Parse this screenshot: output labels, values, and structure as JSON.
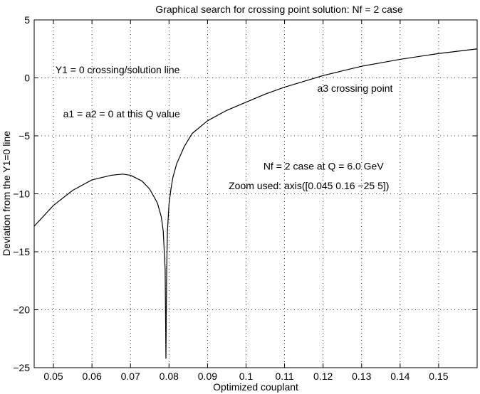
{
  "chart_data": {
    "type": "line",
    "title": "Graphical search for crossing point solution: Nf = 2 case",
    "xlabel": "Optimized couplant",
    "ylabel": "Deviation from the Y1=0 line",
    "xlim": [
      0.045,
      0.16
    ],
    "ylim": [
      -25,
      5
    ],
    "grid": true,
    "xticks": [
      0.05,
      0.06,
      0.07,
      0.08,
      0.09,
      0.1,
      0.11,
      0.12,
      0.13,
      0.14,
      0.15
    ],
    "xtick_labels": [
      "0.05",
      "0.06",
      "0.07",
      "0.08",
      "0.09",
      "0.1",
      "0.11",
      "0.12",
      "0.13",
      "0.14",
      "0.15"
    ],
    "yticks": [
      5,
      0,
      -5,
      -10,
      -15,
      -20,
      -25
    ],
    "ytick_labels": [
      "5",
      "0",
      "−5",
      "−10",
      "−15",
      "−20",
      "−25"
    ],
    "series": [
      {
        "color": "#000000",
        "x": [
          0.045,
          0.05,
          0.055,
          0.06,
          0.065,
          0.068,
          0.07,
          0.073,
          0.075,
          0.077,
          0.078,
          0.0785,
          0.079,
          0.0792,
          0.0794,
          0.0796,
          0.08,
          0.0805,
          0.081,
          0.082,
          0.084,
          0.086,
          0.09,
          0.095,
          0.1,
          0.105,
          0.11,
          0.115,
          0.12,
          0.125,
          0.13,
          0.135,
          0.14,
          0.145,
          0.15,
          0.155,
          0.16
        ],
        "y": [
          -12.8,
          -11.0,
          -9.7,
          -8.8,
          -8.4,
          -8.3,
          -8.4,
          -8.9,
          -9.6,
          -10.8,
          -12.0,
          -13.2,
          -16.5,
          -24.2,
          -16.5,
          -13.2,
          -10.9,
          -9.6,
          -8.6,
          -7.4,
          -5.9,
          -4.8,
          -3.7,
          -2.8,
          -2.1,
          -1.4,
          -0.8,
          -0.3,
          0.2,
          0.6,
          1.0,
          1.3,
          1.6,
          1.85,
          2.1,
          2.3,
          2.5
        ]
      }
    ],
    "annotations": [
      {
        "text": "Y1 = 0 crossing/solution line",
        "x": 0.0505,
        "y": 0.4
      },
      {
        "text": "a1 = a2 = 0 at this Q value",
        "x": 0.0525,
        "y": -3.4
      },
      {
        "text": "a3 crossing point",
        "x": 0.1185,
        "y": -1.2
      },
      {
        "text": "Nf = 2 case at Q = 6.0 GeV",
        "x": 0.1045,
        "y": -7.9
      },
      {
        "text": "Zoom used: axis([0.045 0.16 −25 5])",
        "x": 0.0955,
        "y": -9.6
      }
    ]
  }
}
